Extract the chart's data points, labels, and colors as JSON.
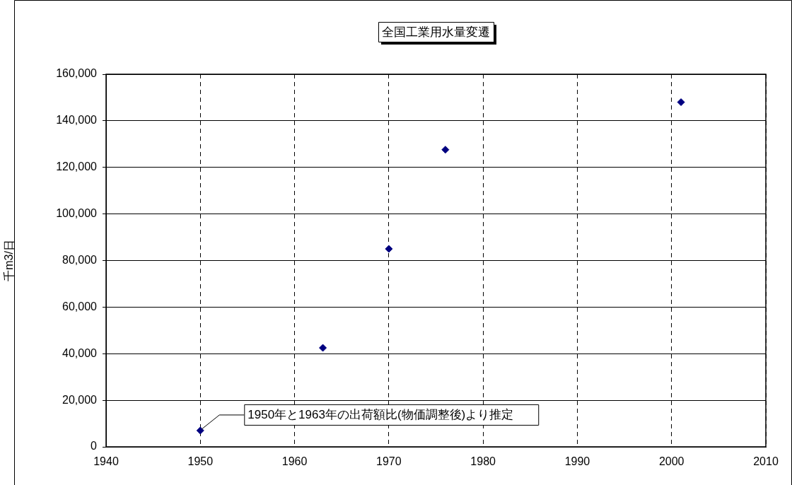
{
  "chart_data": {
    "type": "scatter",
    "title": "全国工業用水量変遷",
    "ylabel": "千m3/日",
    "x": [
      1950,
      1963,
      1970,
      1976,
      2001
    ],
    "series": [
      {
        "color": "#000080",
        "values": [
          7000,
          42500,
          85000,
          127600,
          148000
        ]
      }
    ],
    "xlim": [
      1940,
      2010
    ],
    "xticks": [
      1940,
      1950,
      1960,
      1970,
      1980,
      1990,
      2000,
      2010
    ],
    "ylim": [
      0,
      160000
    ],
    "yticks": [
      0,
      {
        "value": 20000,
        "label": "20,000"
      },
      {
        "value": 40000,
        "label": "40,000"
      },
      {
        "value": 60000,
        "label": "60,000"
      },
      {
        "value": 80000,
        "label": "80,000"
      },
      {
        "value": 100000,
        "label": "100,000"
      },
      {
        "value": 120000,
        "label": "120,000"
      },
      {
        "value": 140000,
        "label": "140,000"
      },
      {
        "value": 160000,
        "label": "160,000"
      }
    ],
    "grid": true,
    "legend": false,
    "marker": "diamond",
    "annotations": [
      {
        "text": "1950年と1963年の出荷額比(物価調整後)より推定",
        "x": 1950,
        "y": 7000
      }
    ]
  }
}
